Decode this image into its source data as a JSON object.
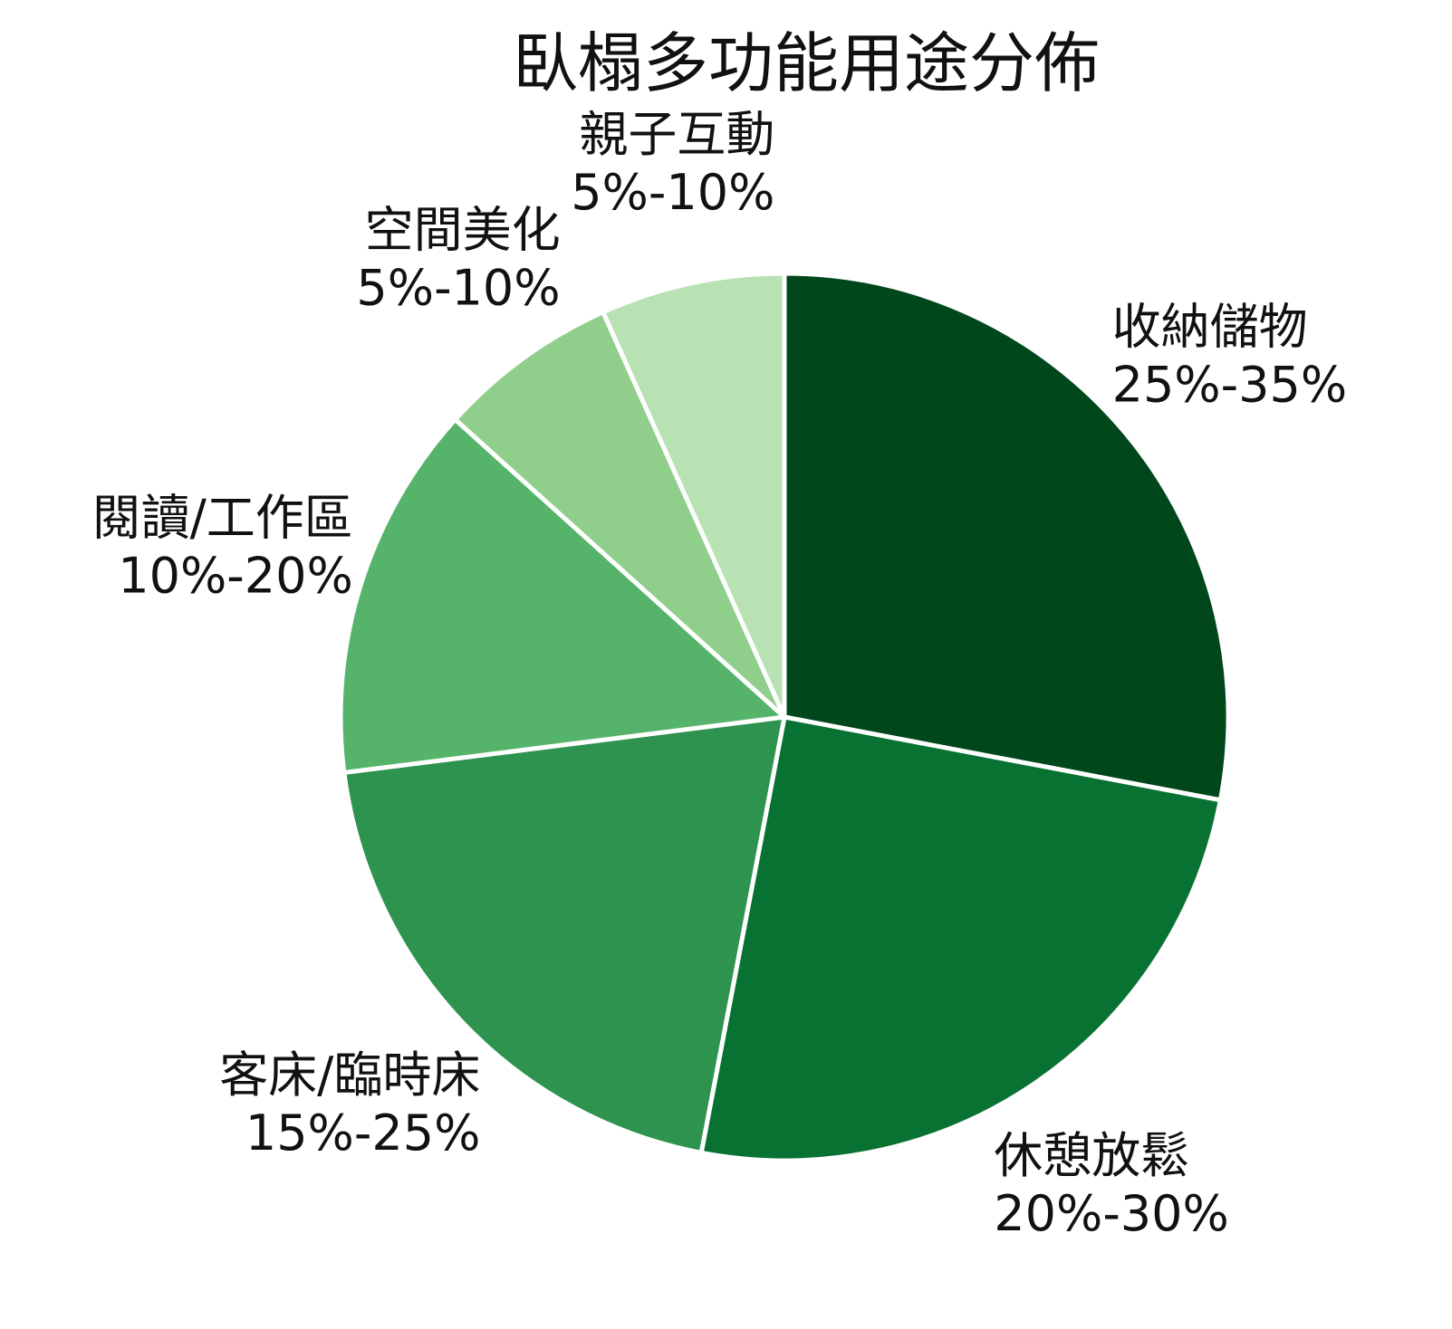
{
  "chart_data": {
    "type": "pie",
    "title": "臥榻多功能用途分佈",
    "start_angle_deg": 90,
    "direction": "clockwise",
    "slices": [
      {
        "label": "收納儲物",
        "range": "25%-35%",
        "value": 28.0,
        "color": "#00471B"
      },
      {
        "label": "休憩放鬆",
        "range": "20%-30%",
        "value": 25.0,
        "color": "#077231"
      },
      {
        "label": "客床/臨時床",
        "range": "15%-25%",
        "value": 20.0,
        "color": "#2E934E"
      },
      {
        "label": "閱讀/工作區",
        "range": "10%-20%",
        "value": 13.7,
        "color": "#56B46A"
      },
      {
        "label": "空間美化",
        "range": "5%-10%",
        "value": 6.6,
        "color": "#8FCF8B"
      },
      {
        "label": "親子互動",
        "range": "5%-10%",
        "value": 6.7,
        "color": "#B8E2B3"
      }
    ]
  }
}
